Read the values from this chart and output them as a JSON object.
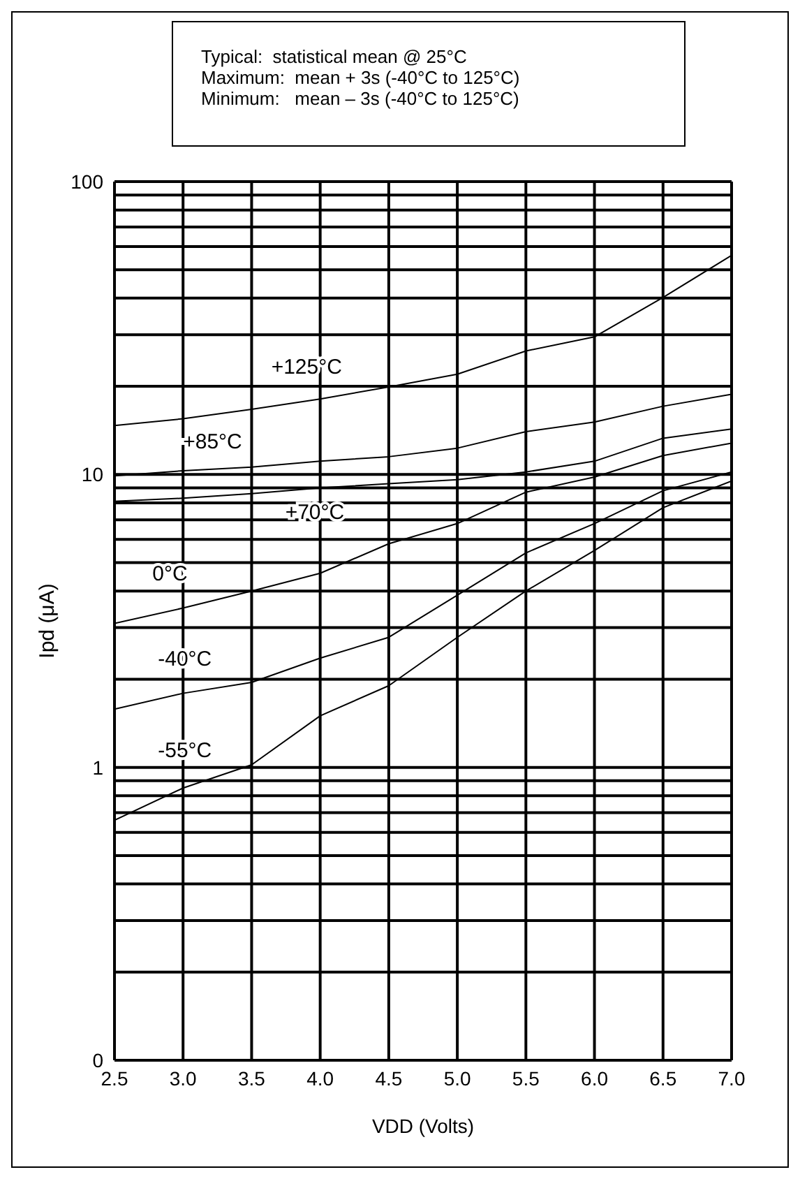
{
  "chart_data": {
    "type": "line",
    "xlabel": "VDD (Volts)",
    "ylabel": "Ipd (μA)",
    "log": "y",
    "grid": true,
    "marker": "none",
    "line_style": "solid",
    "legend": false,
    "x": [
      2.5,
      3.0,
      3.5,
      4.0,
      4.5,
      5.0,
      5.5,
      6.0,
      6.5,
      7.0
    ],
    "xlim": [
      2.5,
      7.0
    ],
    "xticks": [
      {
        "value": 2.5,
        "label": "2.5"
      },
      {
        "value": 3.0,
        "label": "3.0"
      },
      {
        "value": 3.5,
        "label": "3.5"
      },
      {
        "value": 4.0,
        "label": "4.0"
      },
      {
        "value": 4.5,
        "label": "4.5"
      },
      {
        "value": 5.0,
        "label": "5.0"
      },
      {
        "value": 5.5,
        "label": "5.5"
      },
      {
        "value": 6.0,
        "label": "6.0"
      },
      {
        "value": 6.5,
        "label": "6.5"
      },
      {
        "value": 7.0,
        "label": "7.0"
      }
    ],
    "ylim": [
      0.1,
      100
    ],
    "yticks": [
      {
        "value": 0.1,
        "label": "0"
      },
      {
        "value": 0.2,
        "label": null
      },
      {
        "value": 0.3,
        "label": null
      },
      {
        "value": 0.4,
        "label": null
      },
      {
        "value": 0.5,
        "label": null
      },
      {
        "value": 0.6,
        "label": null
      },
      {
        "value": 0.7,
        "label": null
      },
      {
        "value": 0.8,
        "label": null
      },
      {
        "value": 0.9,
        "label": null
      },
      1,
      {
        "value": 2,
        "label": null
      },
      {
        "value": 3,
        "label": null
      },
      {
        "value": 4,
        "label": null
      },
      {
        "value": 5,
        "label": null
      },
      {
        "value": 6,
        "label": null
      },
      {
        "value": 7,
        "label": null
      },
      {
        "value": 8,
        "label": null
      },
      {
        "value": 9,
        "label": null
      },
      10,
      {
        "value": 20,
        "label": null
      },
      {
        "value": 30,
        "label": null
      },
      {
        "value": 40,
        "label": null
      },
      {
        "value": 50,
        "label": null
      },
      {
        "value": 60,
        "label": null
      },
      {
        "value": 70,
        "label": null
      },
      {
        "value": 80,
        "label": null
      },
      {
        "value": 90,
        "label": null
      },
      100
    ],
    "annotations": [
      "Typical:  statistical mean @ 25°C",
      "Maximum:  mean + 3s (-40°C to 125°C)",
      "Minimum:   mean – 3s (-40°C to 125°C)"
    ],
    "series": [
      {
        "name": "+125°C",
        "color": "#000000",
        "values": [
          14.7,
          15.5,
          16.7,
          18.1,
          19.9,
          22.0,
          26.4,
          29.5,
          40.2,
          56
        ]
      },
      {
        "name": "+85°C",
        "color": "#000000",
        "values": [
          9.9,
          10.3,
          10.6,
          11.1,
          11.5,
          12.3,
          14.0,
          15.1,
          17.1,
          18.8
        ]
      },
      {
        "name": "+70°C",
        "color": "#000000",
        "values": [
          8.1,
          8.3,
          8.6,
          9.0,
          9.3,
          9.6,
          10.2,
          11.1,
          13.3,
          14.3
        ]
      },
      {
        "name": "0°C",
        "color": "#000000",
        "values": [
          3.1,
          3.5,
          4.0,
          4.6,
          5.8,
          6.8,
          8.7,
          9.8,
          11.6,
          12.8
        ]
      },
      {
        "name": "-40°C",
        "color": "#000000",
        "values": [
          1.58,
          1.79,
          1.95,
          2.36,
          2.78,
          3.87,
          5.4,
          6.8,
          8.8,
          10.2
        ]
      },
      {
        "name": "-55°C",
        "color": "#000000",
        "values": [
          0.66,
          0.85,
          1.02,
          1.5,
          1.9,
          2.78,
          4.0,
          5.5,
          7.7,
          9.5
        ]
      }
    ]
  }
}
